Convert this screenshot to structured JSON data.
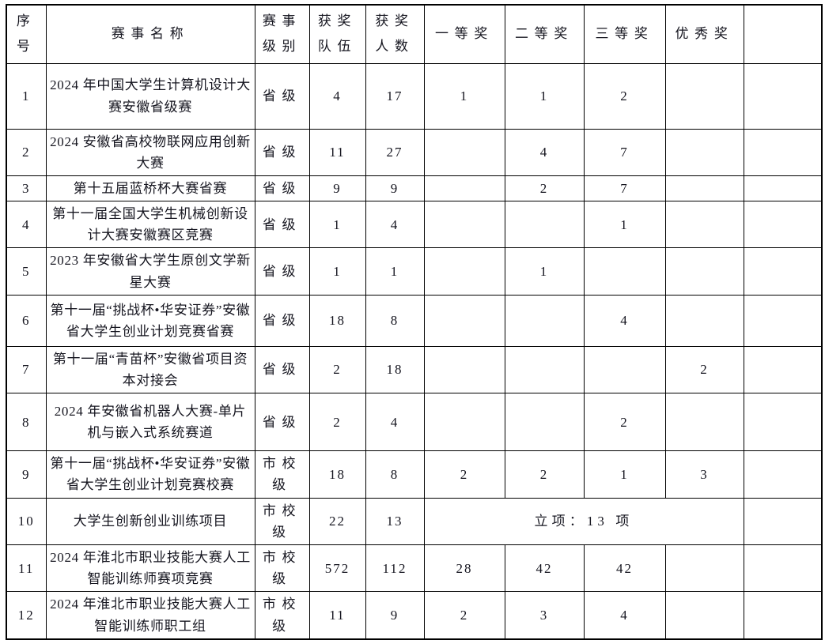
{
  "document": {
    "background_color": "#ffffff",
    "text_color": "#15151f",
    "border_color": "#000000"
  },
  "table": {
    "headers": [
      "序\n号",
      "赛事名称",
      "赛事\n级别",
      "获奖\n队伍",
      "获奖\n人数",
      "一等奖",
      "二等奖",
      "三等奖",
      "优秀奖",
      ""
    ],
    "rows": [
      {
        "no": "1",
        "name": "2024 年中国大学生计算机设计大赛安徽省级赛",
        "level": "省级",
        "teams": "4",
        "people": "17",
        "first": "1",
        "second": "1",
        "third": "2",
        "excellent": "",
        "extra": ""
      },
      {
        "no": "2",
        "name": "2024 安徽省高校物联网应用创新大赛",
        "level": "省级",
        "teams": "11",
        "people": "27",
        "first": "",
        "second": "4",
        "third": "7",
        "excellent": "",
        "extra": ""
      },
      {
        "no": "3",
        "name": "第十五届蓝桥杯大赛省赛",
        "level": "省级",
        "teams": "9",
        "people": "9",
        "first": "",
        "second": "2",
        "third": "7",
        "excellent": "",
        "extra": ""
      },
      {
        "no": "4",
        "name": "第十一届全国大学生机械创新设计大赛安徽赛区竞赛",
        "level": "省级",
        "teams": "1",
        "people": "4",
        "first": "",
        "second": "",
        "third": "1",
        "excellent": "",
        "extra": ""
      },
      {
        "no": "5",
        "name": "2023 年安徽省大学生原创文学新星大赛",
        "level": "省级",
        "teams": "1",
        "people": "1",
        "first": "",
        "second": "1",
        "third": "",
        "excellent": "",
        "extra": ""
      },
      {
        "no": "6",
        "name": "第十一届“挑战杯•华安证券”安徽省大学生创业计划竞赛省赛",
        "level": "省级",
        "teams": "18",
        "people": "8",
        "first": "",
        "second": "",
        "third": "4",
        "excellent": "",
        "extra": ""
      },
      {
        "no": "7",
        "name": "第十一届“青苗杯”安徽省项目资本对接会",
        "level": "省级",
        "teams": "2",
        "people": "18",
        "first": "",
        "second": "",
        "third": "",
        "excellent": "2",
        "extra": ""
      },
      {
        "no": "8",
        "name": "2024 年安徽省机器人大赛-单片机与嵌入式系统赛道",
        "level": "省级",
        "teams": "2",
        "people": "4",
        "first": "",
        "second": "",
        "third": "2",
        "excellent": "",
        "extra": ""
      },
      {
        "no": "9",
        "name": "第十一届“挑战杯•华安证券”安徽省大学生创业计划竞赛校赛",
        "level": "市校级",
        "teams": "18",
        "people": "8",
        "first": "2",
        "second": "2",
        "third": "1",
        "excellent": "3",
        "extra": ""
      },
      {
        "no": "10",
        "name": "大学生创新创业训练项目",
        "level": "市校级",
        "teams": "22",
        "people": "13",
        "merged": "立项：13 项",
        "extra": ""
      },
      {
        "no": "11",
        "name": "2024 年淮北市职业技能大赛人工智能训练师赛项竞赛",
        "level": "市校级",
        "teams": "572",
        "people": "112",
        "first": "28",
        "second": "42",
        "third": "42",
        "excellent": "",
        "extra": ""
      },
      {
        "no": "12",
        "name": "2024 年淮北市职业技能大赛人工智能训练师职工组",
        "level": "市校级",
        "teams": "11",
        "people": "9",
        "first": "2",
        "second": "3",
        "third": "4",
        "excellent": "",
        "extra": ""
      }
    ]
  }
}
